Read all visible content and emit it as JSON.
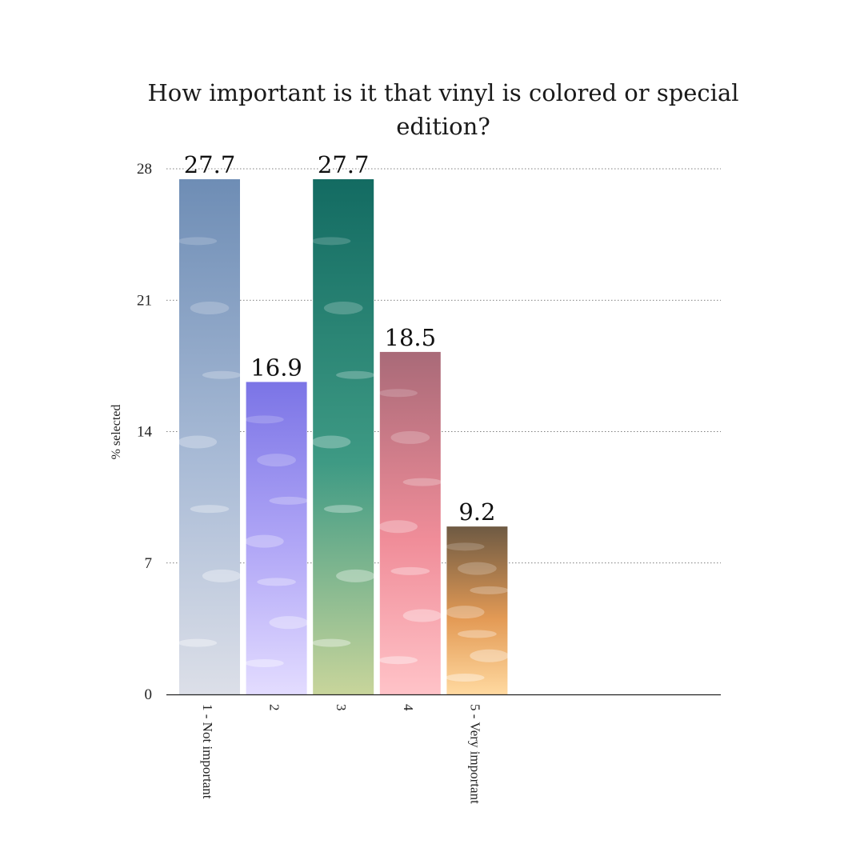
{
  "chart_data": {
    "type": "bar",
    "title_lines": [
      "How important is it that vinyl is colored or special",
      "edition?"
    ],
    "xlabel": "",
    "ylabel": "% selected",
    "ylim": [
      0,
      28
    ],
    "yticks": [
      0,
      7,
      14,
      21,
      28
    ],
    "grid": true,
    "categories": [
      "1 - Not important",
      "2",
      "3",
      "4",
      "5 - Very important"
    ],
    "values": [
      27.7,
      16.9,
      27.7,
      18.5,
      9.2
    ],
    "data_labels": [
      "27.7",
      "16.9",
      "27.7",
      "18.5",
      "9.2"
    ],
    "bar_colors": [
      [
        "#6e8db5",
        "#a9bbd6",
        "#dcdfe8"
      ],
      [
        "#7b74e6",
        "#b3a9f7",
        "#e3dcff"
      ],
      [
        "#136b62",
        "#3e9a84",
        "#c8d59b"
      ],
      [
        "#a96a78",
        "#f08d99",
        "#ffc3c8"
      ],
      [
        "#6e5a43",
        "#e39a55",
        "#ffd9a0"
      ]
    ]
  }
}
